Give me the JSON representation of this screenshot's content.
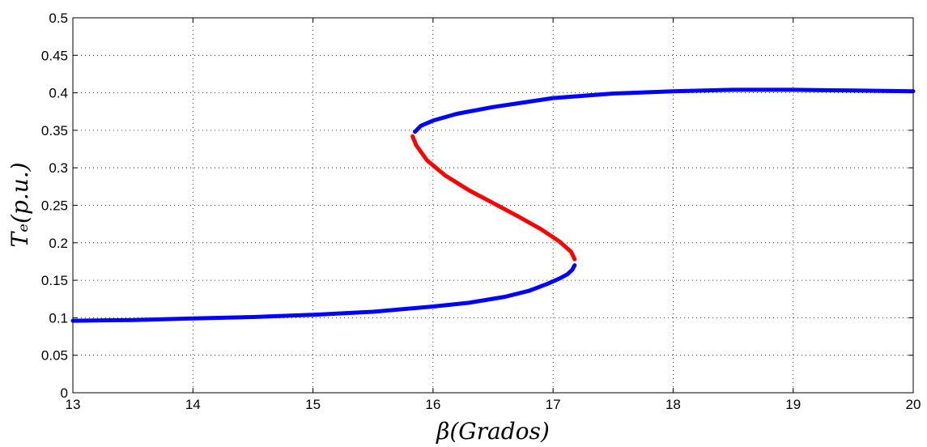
{
  "chart_data": {
    "type": "line",
    "xlabel": "β(Grados)",
    "ylabel": "Tₑ(p.u.)",
    "xlim": [
      13,
      20
    ],
    "ylim": [
      0,
      0.5
    ],
    "x_ticks": [
      "13",
      "14",
      "15",
      "16",
      "17",
      "18",
      "19",
      "20"
    ],
    "y_ticks": [
      "0",
      "0.05",
      "0.1",
      "0.15",
      "0.2",
      "0.25",
      "0.3",
      "0.35",
      "0.4",
      "0.45",
      "0.5"
    ],
    "grid": true,
    "series": [
      {
        "color": "#0000ff",
        "points": [
          [
            13.0,
            0.096
          ],
          [
            13.5,
            0.097
          ],
          [
            14.0,
            0.099
          ],
          [
            14.5,
            0.101
          ],
          [
            15.0,
            0.104
          ],
          [
            15.5,
            0.108
          ],
          [
            16.0,
            0.115
          ],
          [
            16.3,
            0.12
          ],
          [
            16.6,
            0.128
          ],
          [
            16.8,
            0.136
          ],
          [
            16.95,
            0.145
          ],
          [
            17.05,
            0.152
          ],
          [
            17.12,
            0.158
          ],
          [
            17.16,
            0.164
          ],
          [
            17.18,
            0.17
          ]
        ]
      },
      {
        "color": "#ff0000",
        "points": [
          [
            17.18,
            0.178
          ],
          [
            17.15,
            0.188
          ],
          [
            17.05,
            0.202
          ],
          [
            16.9,
            0.218
          ],
          [
            16.7,
            0.236
          ],
          [
            16.5,
            0.253
          ],
          [
            16.3,
            0.27
          ],
          [
            16.1,
            0.29
          ],
          [
            15.95,
            0.31
          ],
          [
            15.86,
            0.33
          ],
          [
            15.83,
            0.342
          ]
        ]
      },
      {
        "color": "#0000ff",
        "points": [
          [
            15.85,
            0.348
          ],
          [
            15.9,
            0.356
          ],
          [
            16.0,
            0.363
          ],
          [
            16.2,
            0.372
          ],
          [
            16.5,
            0.381
          ],
          [
            17.0,
            0.393
          ],
          [
            17.5,
            0.399
          ],
          [
            18.0,
            0.402
          ],
          [
            18.5,
            0.404
          ],
          [
            19.0,
            0.404
          ],
          [
            19.5,
            0.403
          ],
          [
            20.0,
            0.402
          ]
        ]
      }
    ]
  }
}
